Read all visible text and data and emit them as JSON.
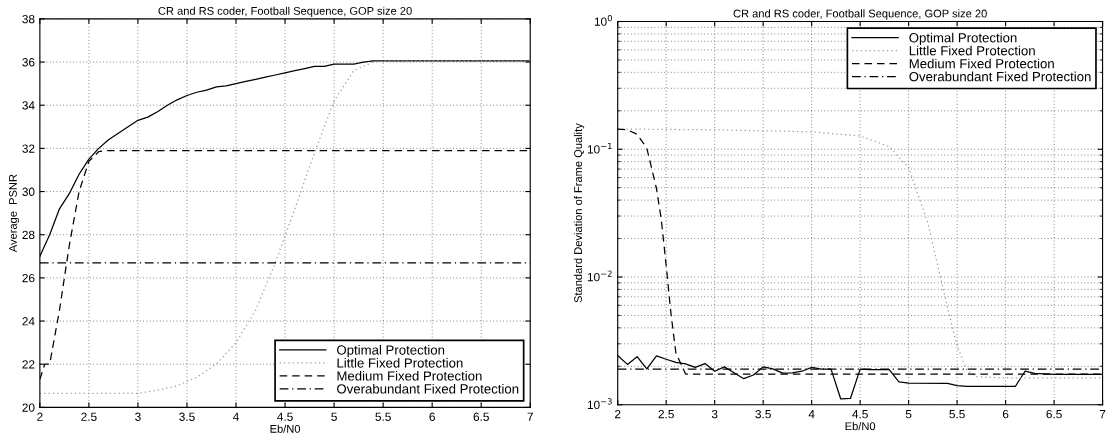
{
  "chart_data": [
    {
      "type": "line",
      "title": "CR and RS coder, Football Sequence, GOP size 20",
      "xlabel": "Eb/N0",
      "ylabel": "Average  PSNR",
      "xlim": [
        2,
        7
      ],
      "xticks": [
        2,
        2.5,
        3,
        3.5,
        4,
        4.5,
        5,
        5.5,
        6,
        6.5,
        7
      ],
      "ylim": [
        20,
        38
      ],
      "yticks": [
        20,
        22,
        24,
        26,
        28,
        30,
        32,
        34,
        36,
        38
      ],
      "grid": true,
      "legend": "bottom right",
      "series": [
        {
          "name": "Optimal Protection",
          "color": "#000000",
          "line_style": "solid",
          "x": [
            2,
            2.1,
            2.2,
            2.3,
            2.4,
            2.5,
            2.6,
            2.7,
            2.8,
            2.9,
            3.0,
            3.1,
            3.2,
            3.3,
            3.4,
            3.5,
            3.6,
            3.7,
            3.8,
            3.9,
            4.0,
            4.1,
            4.2,
            4.3,
            4.4,
            4.5,
            4.6,
            4.7,
            4.8,
            4.9,
            5.0,
            5.1,
            5.2,
            5.3,
            5.4,
            7
          ],
          "values": [
            27.0,
            28.0,
            29.2,
            29.9,
            30.8,
            31.5,
            32.0,
            32.4,
            32.7,
            33.0,
            33.3,
            33.45,
            33.7,
            34.0,
            34.25,
            34.45,
            34.6,
            34.7,
            34.85,
            34.9,
            35.0,
            35.1,
            35.2,
            35.3,
            35.4,
            35.5,
            35.6,
            35.7,
            35.8,
            35.8,
            35.9,
            35.9,
            35.9,
            36.0,
            36.05,
            36.05
          ]
        },
        {
          "name": "Little Fixed Protection",
          "color": "#999999",
          "line_style": "dotted",
          "x": [
            2,
            3.0,
            3.2,
            3.4,
            3.6,
            3.8,
            4.0,
            4.2,
            4.4,
            4.6,
            4.8,
            5.0,
            5.2,
            5.4,
            5.5,
            7
          ],
          "values": [
            20.65,
            20.65,
            20.8,
            21.0,
            21.4,
            22.0,
            23.0,
            24.5,
            26.7,
            29.2,
            31.8,
            34.2,
            35.6,
            36.0,
            36.05,
            36.05
          ]
        },
        {
          "name": "Medium Fixed Protection",
          "color": "#000000",
          "line_style": "dashed",
          "x": [
            2,
            2.05,
            2.1,
            2.2,
            2.3,
            2.4,
            2.5,
            2.6,
            2.7,
            7
          ],
          "values": [
            21.3,
            22.0,
            22.0,
            24.5,
            27.5,
            30.0,
            31.4,
            31.85,
            31.9,
            31.9
          ]
        },
        {
          "name": "Overabundant Fixed Protection",
          "color": "#000000",
          "line_style": "dashdot",
          "x": [
            2,
            7
          ],
          "values": [
            26.7,
            26.7
          ]
        }
      ]
    },
    {
      "type": "line",
      "title": "CR and RS coder, Football Sequence, GOP size 20",
      "xlabel": "Eb/N0",
      "ylabel": "Standard Deviation of Frame Quality",
      "log": "y",
      "xlim": [
        2,
        7
      ],
      "xticks": [
        2,
        2.5,
        3,
        3.5,
        4,
        4.5,
        5,
        5.5,
        6,
        6.5,
        7
      ],
      "ylim": [
        0.001,
        1
      ],
      "yticks": [
        {
          "value": 0.001,
          "label": "10$^{−3}$"
        },
        {
          "value": 0.01,
          "label": "10$^{−2}$"
        },
        {
          "value": 0.1,
          "label": "10$^{−1}$"
        },
        {
          "value": 1,
          "label": "10$^{0}$"
        }
      ],
      "grid": true,
      "legend": "top right",
      "series": [
        {
          "name": "Optimal Protection",
          "color": "#000000",
          "line_style": "solid",
          "x": [
            2.0,
            2.1,
            2.2,
            2.3,
            2.4,
            2.5,
            2.6,
            2.7,
            2.8,
            2.9,
            3.0,
            3.1,
            3.2,
            3.3,
            3.4,
            3.5,
            3.6,
            3.7,
            3.8,
            3.9,
            4.0,
            4.1,
            4.2,
            4.3,
            4.4,
            4.5,
            4.6,
            4.7,
            4.8,
            4.9,
            5.0,
            5.4,
            5.5,
            5.6,
            6.1,
            6.2,
            6.3,
            6.5,
            7.0
          ],
          "values": [
            0.00243,
            0.00207,
            0.00238,
            0.00191,
            0.00241,
            0.00227,
            0.00215,
            0.00209,
            0.00196,
            0.0021,
            0.00183,
            0.00198,
            0.00178,
            0.0016,
            0.00171,
            0.00198,
            0.00191,
            0.00177,
            0.00178,
            0.00183,
            0.00196,
            0.0019,
            0.0019,
            0.00111,
            0.00112,
            0.0019,
            0.00188,
            0.00188,
            0.00188,
            0.00151,
            0.00148,
            0.00147,
            0.00141,
            0.00139,
            0.00139,
            0.00183,
            0.00176,
            0.00173,
            0.00173
          ]
        },
        {
          "name": "Little Fixed Protection",
          "color": "#999999",
          "line_style": "dotted",
          "x": [
            2,
            3,
            4,
            4.5,
            4.8,
            5.0,
            5.2,
            5.4,
            5.5,
            5.6,
            5.7,
            6,
            7
          ],
          "values": [
            0.144,
            0.142,
            0.137,
            0.127,
            0.105,
            0.072,
            0.0262,
            0.00578,
            0.00289,
            0.00186,
            0.00166,
            0.00162,
            0.00162
          ]
        },
        {
          "name": "Medium Fixed Protection",
          "color": "#000000",
          "line_style": "dashed",
          "x": [
            2.0,
            2.1,
            2.2,
            2.3,
            2.4,
            2.45,
            2.5,
            2.55,
            2.6,
            2.7,
            7
          ],
          "values": [
            0.144,
            0.142,
            0.131,
            0.102,
            0.0493,
            0.028,
            0.0123,
            0.0051,
            0.00254,
            0.00174,
            0.00174
          ]
        },
        {
          "name": "Overabundant Fixed Protection",
          "color": "#000000",
          "line_style": "dashdot",
          "x": [
            2,
            7
          ],
          "values": [
            0.0019,
            0.0019
          ]
        }
      ]
    }
  ]
}
